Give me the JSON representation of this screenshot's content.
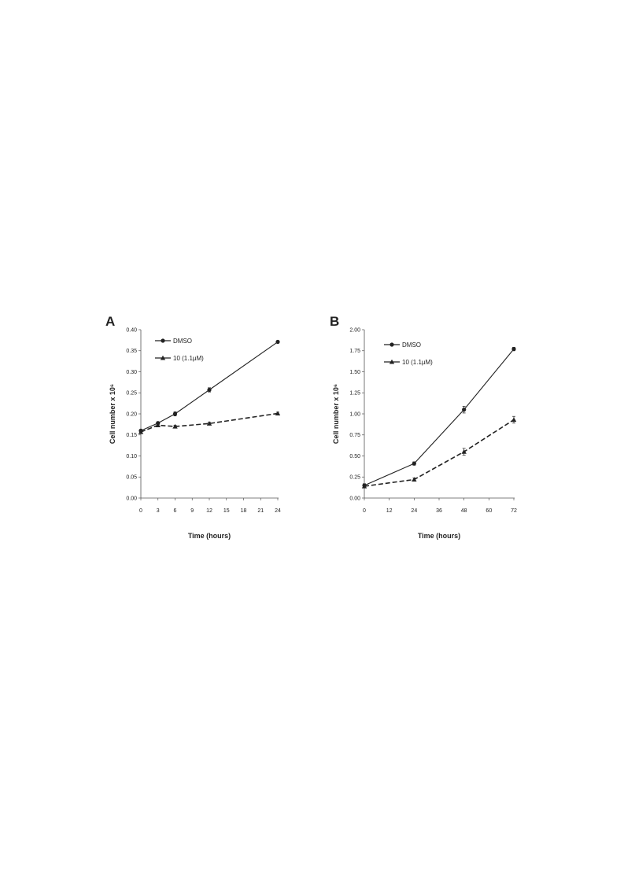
{
  "chart_data": [
    {
      "panel": "A",
      "type": "line",
      "xlabel": "Time (hours)",
      "ylabel": "Cell number x 10⁶",
      "xlim": [
        0,
        24
      ],
      "ylim": [
        0,
        0.4
      ],
      "xticks": [
        "0",
        "3",
        "6",
        "9",
        "12",
        "15",
        "18",
        "21",
        "24"
      ],
      "yticks": [
        "0.00",
        "0.05",
        "0.10",
        "0.15",
        "0.20",
        "0.25",
        "0.30",
        "0.35",
        "0.40"
      ],
      "grid": false,
      "legend_position": "top-left",
      "series": [
        {
          "name": "DMSO",
          "marker": "circle",
          "line": "solid",
          "x": [
            0,
            3,
            6,
            12,
            24
          ],
          "y": [
            0.16,
            0.178,
            0.2,
            0.257,
            0.371
          ],
          "error": [
            0.003,
            0.003,
            0.005,
            0.005,
            0.003
          ]
        },
        {
          "name": "10 (1.1µM)",
          "marker": "triangle",
          "line": "dashed",
          "x": [
            0,
            3,
            6,
            12,
            24
          ],
          "y": [
            0.157,
            0.173,
            0.17,
            0.177,
            0.201
          ],
          "error": [
            0.003,
            0.003,
            0.003,
            0.003,
            0.003
          ]
        }
      ]
    },
    {
      "panel": "B",
      "type": "line",
      "xlabel": "Time (hours)",
      "ylabel": "Cell number x 10⁶",
      "xlim": [
        0,
        72
      ],
      "ylim": [
        0,
        2.0
      ],
      "xticks": [
        "0",
        "12",
        "24",
        "36",
        "48",
        "60",
        "72"
      ],
      "yticks": [
        "0.00",
        "0.25",
        "0.50",
        "0.75",
        "1.00",
        "1.25",
        "1.50",
        "1.75",
        "2.00"
      ],
      "grid": false,
      "legend_position": "top-left",
      "series": [
        {
          "name": "DMSO",
          "marker": "circle",
          "line": "solid",
          "x": [
            0,
            24,
            48,
            72
          ],
          "y": [
            0.15,
            0.41,
            1.05,
            1.77
          ],
          "error": [
            0.02,
            0.02,
            0.04,
            0.02
          ]
        },
        {
          "name": "10 (1.1µM)",
          "marker": "triangle",
          "line": "dashed",
          "x": [
            0,
            24,
            48,
            72
          ],
          "y": [
            0.14,
            0.22,
            0.55,
            0.93
          ],
          "error": [
            0.02,
            0.02,
            0.04,
            0.04
          ]
        }
      ]
    }
  ]
}
